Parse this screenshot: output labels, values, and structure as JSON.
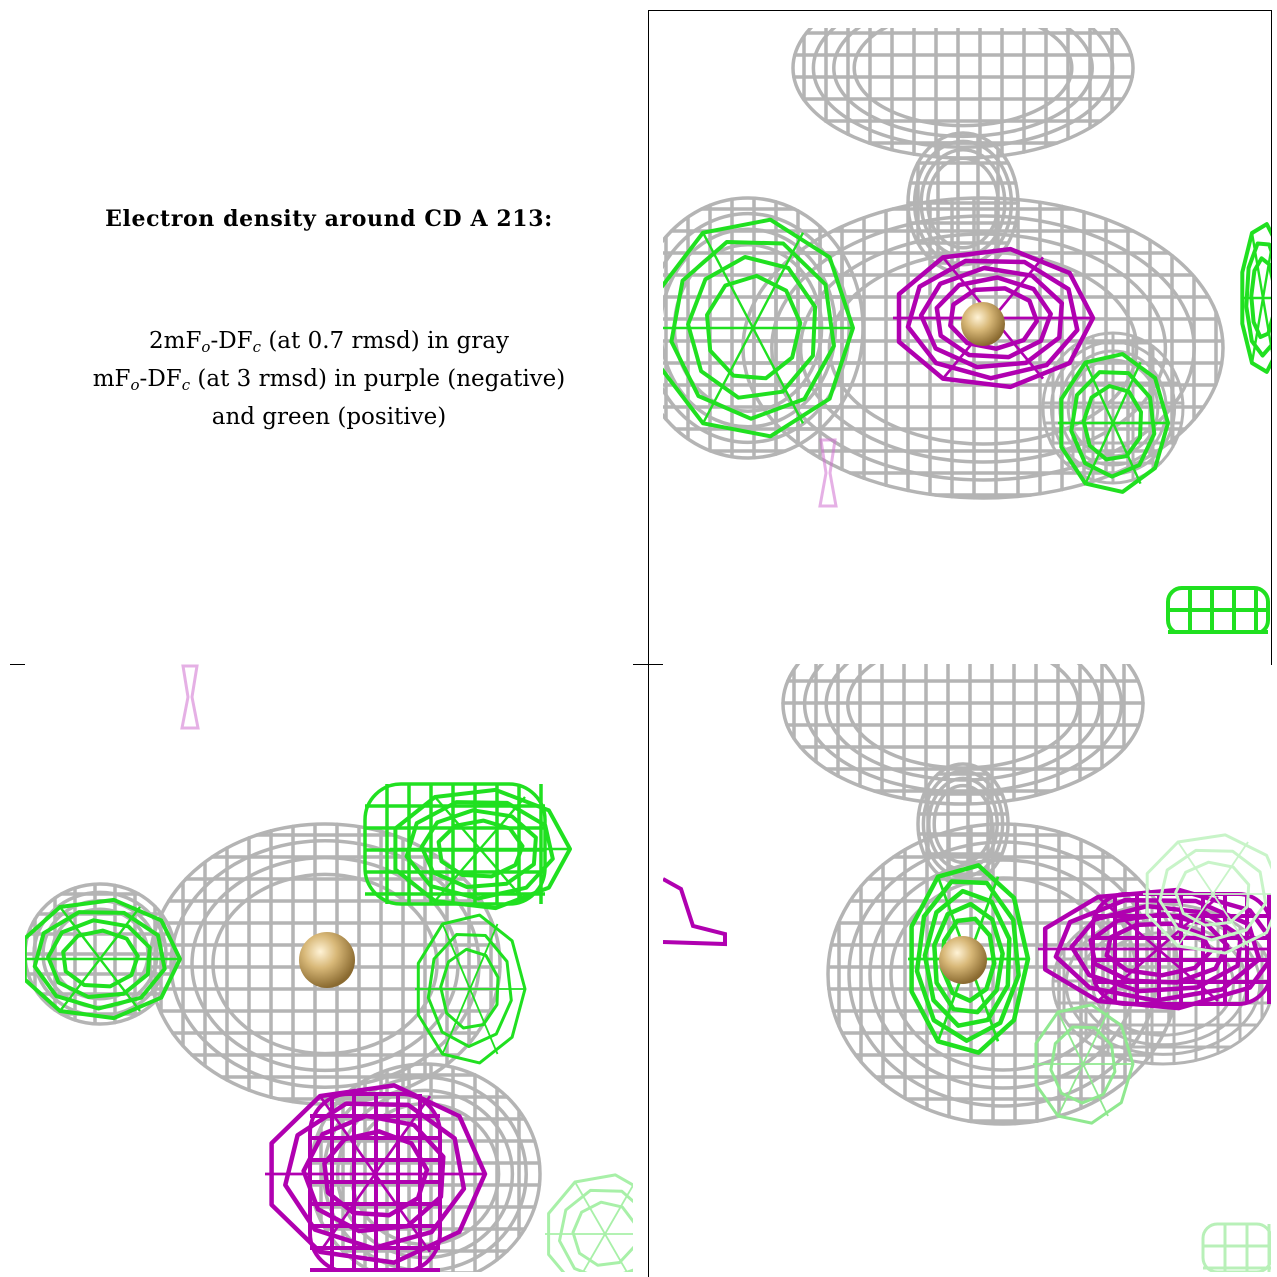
{
  "title": "Electron density around CD A 213:",
  "legend": {
    "line1": {
      "a": "2mF",
      "sub1": "o",
      "b": "-DF",
      "sub2": "c",
      "rest": " (at 0.7 rmsd) in gray"
    },
    "line2": {
      "a": "mF",
      "sub1": "o",
      "b": "-DF",
      "sub2": "c",
      "rest": " (at 3 rmsd) in purple (negative)"
    },
    "line3": "and green (positive)"
  },
  "colors": {
    "map_2fofc": "#b4b4b4",
    "map_fofc_negative": "#b000b0",
    "map_fofc_positive": "#20e020",
    "atom_cd": "#d8b878"
  },
  "panels": [
    {
      "name": "view-1",
      "atom": "CD A 213"
    },
    {
      "name": "view-2",
      "atom": "CD A 213"
    },
    {
      "name": "view-3",
      "atom": "CD A 213"
    }
  ]
}
